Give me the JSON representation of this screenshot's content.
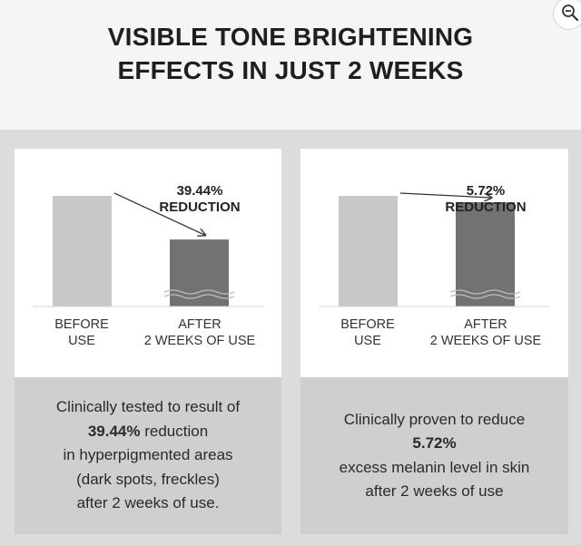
{
  "title": {
    "line1": "VISIBLE TONE BRIGHTENING",
    "line2": "EFFECTS IN JUST 2 WEEKS"
  },
  "zoom_icon": "zoom-out-icon",
  "colors": {
    "before_bar": "#c8c8c8",
    "after_bar": "#727272",
    "panel_bg": "#dcdcdc",
    "caption_bg": "#cfcfcf"
  },
  "chart_data": [
    {
      "type": "bar",
      "categories": [
        "BEFORE\nUSE",
        "AFTER\n2 WEEKS OF USE"
      ],
      "values": [
        100,
        60.56
      ],
      "annotation": [
        "39.44%",
        "REDUCTION"
      ],
      "ylim": [
        0,
        100
      ],
      "grid": false
    },
    {
      "type": "bar",
      "categories": [
        "BEFORE\nUSE",
        "AFTER\n2 WEEKS OF USE"
      ],
      "values": [
        100,
        94.28
      ],
      "annotation": [
        "5.72%",
        "REDUCTION"
      ],
      "ylim": [
        0,
        100
      ],
      "grid": false
    }
  ],
  "captions": [
    {
      "lines": [
        {
          "text": "Clinically tested to result of",
          "bold": false
        },
        {
          "text": "39.44%",
          "bold": true,
          "rest": " reduction"
        },
        {
          "text": "in hyperpigmented areas",
          "bold": false
        },
        {
          "text": "(dark spots, freckles)",
          "bold": false
        },
        {
          "text": "after 2 weeks of use.",
          "bold": false
        }
      ]
    },
    {
      "lines": [
        {
          "text": "Clinically proven to reduce",
          "bold": false
        },
        {
          "text": "5.72%",
          "bold": true
        },
        {
          "text": "excess melanin level in skin",
          "bold": false
        },
        {
          "text": "after 2 weeks of use",
          "bold": false
        }
      ]
    }
  ]
}
